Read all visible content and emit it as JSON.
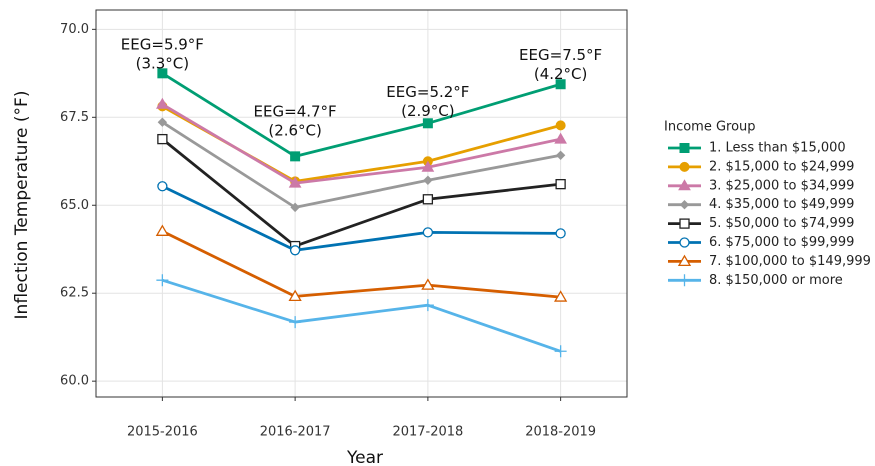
{
  "chart_data": {
    "type": "line",
    "x_label": "Year",
    "y_label": "Inflection Temperature (°F)",
    "categories": [
      "2015-2016",
      "2016-2017",
      "2017-2018",
      "2018-2019"
    ],
    "ylim": [
      59.55,
      70.55
    ],
    "yticks": [
      {
        "value": 60,
        "label": "60.0"
      },
      {
        "value": 62.5,
        "label": "62.5"
      },
      {
        "value": 65,
        "label": "65.0"
      },
      {
        "value": 67.5,
        "label": "67.5"
      },
      {
        "value": 70,
        "label": "70.0"
      }
    ],
    "grid": true,
    "legend_title": "Income Group",
    "legend_position": "right",
    "series": [
      {
        "name": "1. Less than $15,000",
        "color": "#009e73",
        "marker": "square",
        "values": [
          68.75,
          66.39,
          67.33,
          68.44
        ]
      },
      {
        "name": "2. $15,000 to $24,999",
        "color": "#e69f00",
        "marker": "circle",
        "values": [
          67.81,
          65.68,
          66.25,
          67.27
        ]
      },
      {
        "name": "3. $25,000 to $34,999",
        "color": "#cc79a7",
        "marker": "triangle",
        "values": [
          67.87,
          65.63,
          66.08,
          66.88
        ]
      },
      {
        "name": "4. $35,000 to $49,999",
        "color": "#999999",
        "marker": "diamond",
        "values": [
          67.36,
          64.94,
          65.71,
          66.42
        ]
      },
      {
        "name": "5. $50,000 to $74,999",
        "color": "#222222",
        "marker": "square-open",
        "values": [
          66.88,
          63.84,
          65.17,
          65.6
        ]
      },
      {
        "name": "6. $75,000 to $99,999",
        "color": "#0072b2",
        "marker": "circle-open",
        "values": [
          65.54,
          63.72,
          64.23,
          64.2
        ]
      },
      {
        "name": "7. $100,000 to $149,999",
        "color": "#d55e00",
        "marker": "triangle-open",
        "values": [
          64.26,
          62.41,
          62.73,
          62.39
        ]
      },
      {
        "name": "8. $150,000 or more",
        "color": "#56b4e9",
        "marker": "plus",
        "values": [
          62.87,
          61.68,
          62.16,
          60.85
        ]
      }
    ],
    "annotations": [
      {
        "lines": [
          "EEG=5.9°F",
          "(3.3°C)"
        ],
        "x": "2015-2016",
        "y": 69.55
      },
      {
        "lines": [
          "EEG=4.7°F",
          "(2.6°C)"
        ],
        "x": "2016-2017",
        "y": 67.65
      },
      {
        "lines": [
          "EEG=5.2°F",
          "(2.9°C)"
        ],
        "x": "2017-2018",
        "y": 68.2
      },
      {
        "lines": [
          "EEG=7.5°F",
          "(4.2°C)"
        ],
        "x": "2018-2019",
        "y": 69.25
      }
    ]
  }
}
